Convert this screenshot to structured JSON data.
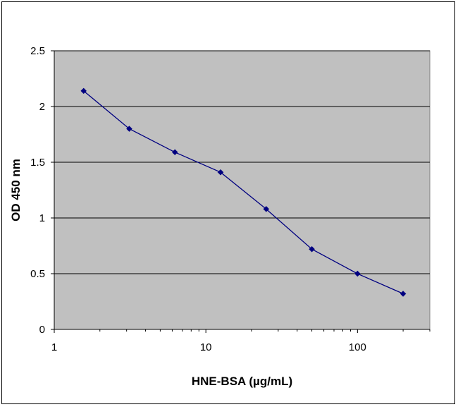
{
  "chart_data": {
    "type": "line",
    "xlabel": "HNE-BSA (µg/mL)",
    "ylabel": "OD 450 nm",
    "xscale": "log",
    "xlim": [
      1,
      300
    ],
    "ylim": [
      0,
      2.5
    ],
    "x_ticks": [
      1,
      10,
      100
    ],
    "x_tick_labels": [
      "1",
      "10",
      "100"
    ],
    "y_ticks": [
      0,
      0.5,
      1,
      1.5,
      2,
      2.5
    ],
    "y_tick_labels": [
      "0",
      "0.5",
      "1",
      "1.5",
      "2",
      "2.5"
    ],
    "grid": "horizontal",
    "legend": "none",
    "series": [
      {
        "x": [
          1.5625,
          3.125,
          6.25,
          12.5,
          25,
          50,
          100,
          200
        ],
        "y": [
          2.14,
          1.8,
          1.59,
          1.41,
          1.08,
          0.72,
          0.5,
          0.32
        ]
      }
    ],
    "colors": {
      "plot_background": "#c0c0c0",
      "line": "#000080",
      "marker": "#000080",
      "gridline": "#000000"
    }
  }
}
